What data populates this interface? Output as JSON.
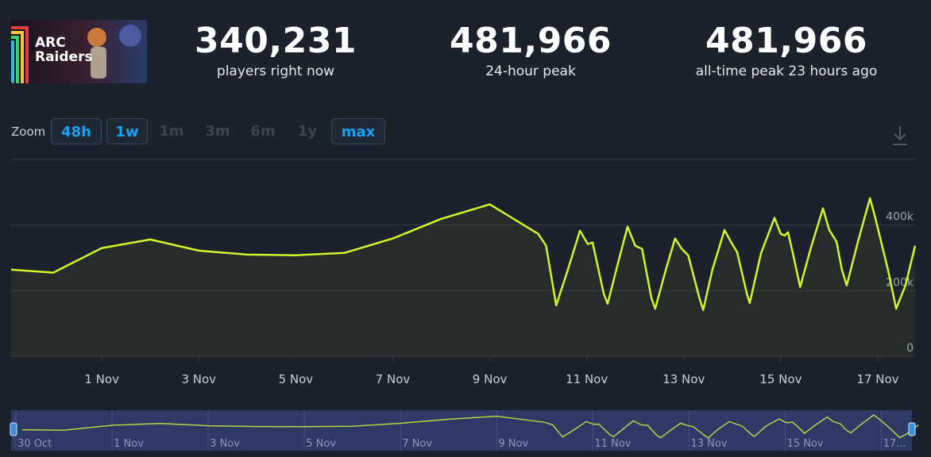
{
  "game": {
    "logo": [
      "ARC",
      "Raiders"
    ]
  },
  "stats": [
    {
      "value": "340,231",
      "label": "players right now"
    },
    {
      "value": "481,966",
      "label": "24-hour peak"
    },
    {
      "value": "481,966",
      "label": "all-time peak 23 hours ago"
    }
  ],
  "zoom": {
    "label": "Zoom",
    "buttons": [
      {
        "label": "48h",
        "enabled": true
      },
      {
        "label": "1w",
        "enabled": true
      },
      {
        "label": "1m",
        "enabled": false
      },
      {
        "label": "3m",
        "enabled": false
      },
      {
        "label": "6m",
        "enabled": false
      },
      {
        "label": "1y",
        "enabled": false
      },
      {
        "label": "max",
        "enabled": true
      }
    ]
  },
  "chart_data": {
    "type": "line",
    "color": "#d4f52c",
    "grid": true,
    "x": [
      -0.87,
      0,
      1,
      2,
      3,
      4,
      5,
      6,
      7,
      8,
      9,
      10,
      10.16,
      10.37,
      10.61,
      10.86,
      11.02,
      11.12,
      11.35,
      11.43,
      11.65,
      11.84,
      12.0,
      12.14,
      12.33,
      12.41,
      12.63,
      12.82,
      12.96,
      13.09,
      13.32,
      13.4,
      13.59,
      13.84,
      13.97,
      14.1,
      14.3,
      14.36,
      14.59,
      14.87,
      15.0,
      15.08,
      15.15,
      15.25,
      15.4,
      15.61,
      15.87,
      16.0,
      16.15,
      16.26,
      16.36,
      16.59,
      16.84,
      16.95,
      17.05,
      17.21,
      17.38,
      17.57,
      17.77
    ],
    "values": [
      264000,
      255000,
      330000,
      356000,
      322000,
      310000,
      308000,
      315000,
      359000,
      419000,
      463000,
      373000,
      337000,
      155000,
      264000,
      383000,
      342000,
      347000,
      191000,
      160000,
      288000,
      395000,
      337000,
      327000,
      179000,
      145000,
      264000,
      359000,
      327000,
      308000,
      179000,
      141000,
      264000,
      385000,
      349000,
      318000,
      191000,
      162000,
      313000,
      422000,
      373000,
      368000,
      378000,
      313000,
      211000,
      325000,
      451000,
      385000,
      349000,
      264000,
      216000,
      349000,
      482000,
      422000,
      361000,
      264000,
      145000,
      216000,
      337000
    ],
    "xlim": [
      -0.87,
      17.77
    ],
    "ylim": [
      0,
      600000
    ],
    "xticks": [
      {
        "value": 1,
        "label": "1 Nov"
      },
      {
        "value": 3,
        "label": "3 Nov"
      },
      {
        "value": 5,
        "label": "5 Nov"
      },
      {
        "value": 7,
        "label": "7 Nov"
      },
      {
        "value": 9,
        "label": "9 Nov"
      },
      {
        "value": 11,
        "label": "11 Nov"
      },
      {
        "value": 13,
        "label": "13 Nov"
      },
      {
        "value": 15,
        "label": "15 Nov"
      },
      {
        "value": 17,
        "label": "17 Nov"
      }
    ],
    "yticks": [
      0,
      {
        "value": 200000,
        "label": "200k"
      },
      {
        "value": 400000,
        "label": "400k"
      }
    ],
    "navigator": {
      "xlim": [
        -1.1,
        17.7
      ],
      "xticks": [
        {
          "value": -1,
          "label": "30 Oct"
        },
        {
          "value": 1,
          "label": "1 Nov"
        },
        {
          "value": 3,
          "label": "3 Nov"
        },
        {
          "value": 5,
          "label": "5 Nov"
        },
        {
          "value": 7,
          "label": "7 Nov"
        },
        {
          "value": 9,
          "label": "9 Nov"
        },
        {
          "value": 11,
          "label": "11 Nov"
        },
        {
          "value": 13,
          "label": "13 Nov"
        },
        {
          "value": 15,
          "label": "15 Nov"
        },
        {
          "value": 17,
          "label": "17..."
        }
      ]
    }
  }
}
